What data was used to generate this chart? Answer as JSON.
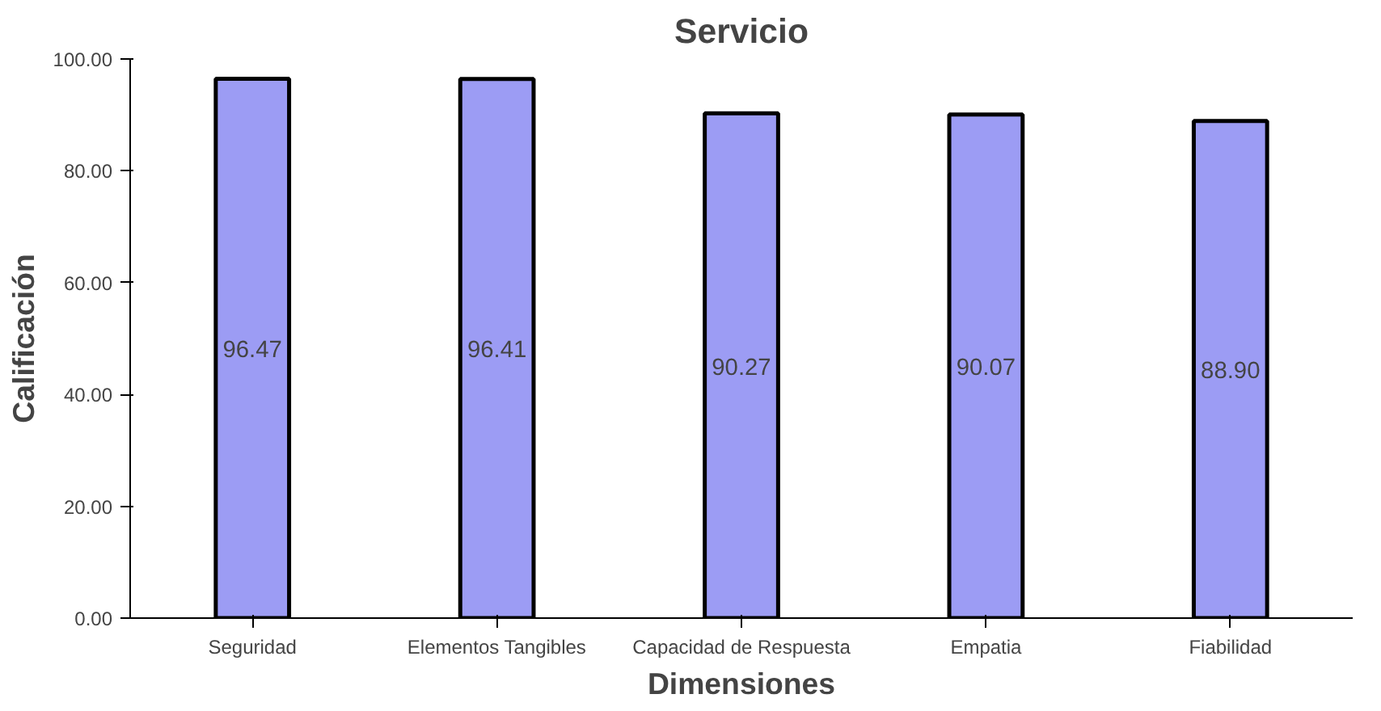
{
  "chart_data": {
    "type": "bar",
    "title": "Servicio",
    "xlabel": "Dimensiones",
    "ylabel": "Calificación",
    "categories": [
      "Seguridad",
      "Elementos Tangibles",
      "Capacidad de Respuesta",
      "Empatia",
      "Fiabilidad"
    ],
    "values": [
      96.47,
      96.41,
      90.27,
      90.07,
      88.9
    ],
    "value_labels": [
      "96.47",
      "96.41",
      "90.27",
      "90.07",
      "88.90"
    ],
    "color": "#9c9cf4",
    "ylim": [
      0,
      100
    ],
    "yticks": [
      {
        "value": 0,
        "label": "0.00"
      },
      {
        "value": 20,
        "label": "20.00"
      },
      {
        "value": 40,
        "label": "40.00"
      },
      {
        "value": 60,
        "label": "60.00"
      },
      {
        "value": 80,
        "label": "80.00"
      },
      {
        "value": 100,
        "label": "100.00"
      }
    ],
    "grid": false
  }
}
